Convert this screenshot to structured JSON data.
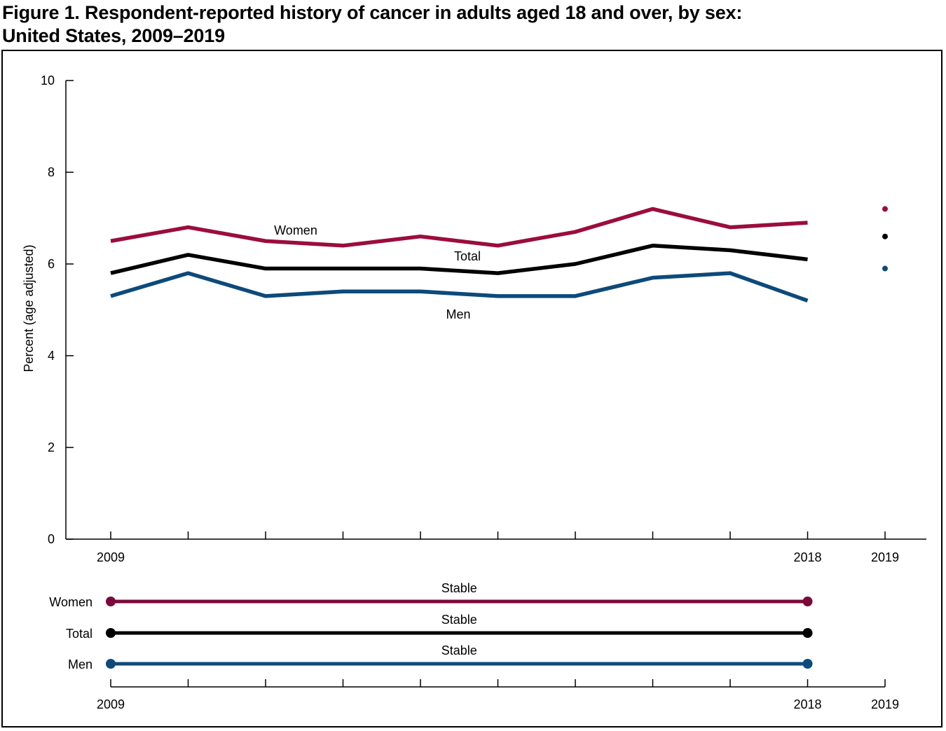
{
  "title_line1": "Figure 1. Respondent-reported history of cancer in adults aged 18 and over, by sex:",
  "title_line2": "United States, 2009–2019",
  "chart_data": {
    "type": "line",
    "title": "Figure 1. Respondent-reported history of cancer in adults aged 18 and over, by sex: United States, 2009–2019",
    "ylabel": "Percent (age adjusted)",
    "xlabel": "",
    "ylim": [
      0,
      10
    ],
    "yticks": [
      0,
      2,
      4,
      6,
      8,
      10
    ],
    "x": [
      2009,
      2010,
      2011,
      2012,
      2013,
      2014,
      2015,
      2016,
      2017,
      2018
    ],
    "xticks_labeled": [
      "2009",
      "2018",
      "2019"
    ],
    "grid": false,
    "series": [
      {
        "name": "Women",
        "color": "#9b0d3e",
        "values": [
          6.5,
          6.8,
          6.5,
          6.4,
          6.6,
          6.4,
          6.7,
          7.2,
          6.8,
          6.9
        ]
      },
      {
        "name": "Total",
        "color": "#000000",
        "values": [
          5.8,
          6.2,
          5.9,
          5.9,
          5.9,
          5.8,
          6.0,
          6.4,
          6.3,
          6.1
        ]
      },
      {
        "name": "Men",
        "color": "#0d4a7a",
        "values": [
          5.3,
          5.8,
          5.3,
          5.4,
          5.4,
          5.3,
          5.3,
          5.7,
          5.8,
          5.2
        ]
      }
    ],
    "points_2019": [
      {
        "name": "Women",
        "x": 2019,
        "value": 7.2
      },
      {
        "name": "Total",
        "x": 2019,
        "value": 6.6
      },
      {
        "name": "Men",
        "x": 2019,
        "value": 5.9
      }
    ],
    "series_labels": [
      {
        "name": "Women",
        "text": "Women"
      },
      {
        "name": "Total",
        "text": "Total"
      },
      {
        "name": "Men",
        "text": "Men"
      }
    ],
    "trends": [
      {
        "name": "Women",
        "label": "Women",
        "color": "#7a0a3a",
        "trend": "Stable",
        "start": 2009,
        "end": 2018
      },
      {
        "name": "Total",
        "label": "Total",
        "color": "#000000",
        "trend": "Stable",
        "start": 2009,
        "end": 2018
      },
      {
        "name": "Men",
        "label": "Men",
        "color": "#0d4a7a",
        "trend": "Stable",
        "start": 2009,
        "end": 2018
      }
    ],
    "trend_axis_ticks_labeled": [
      "2009",
      "2018",
      "2019"
    ]
  }
}
